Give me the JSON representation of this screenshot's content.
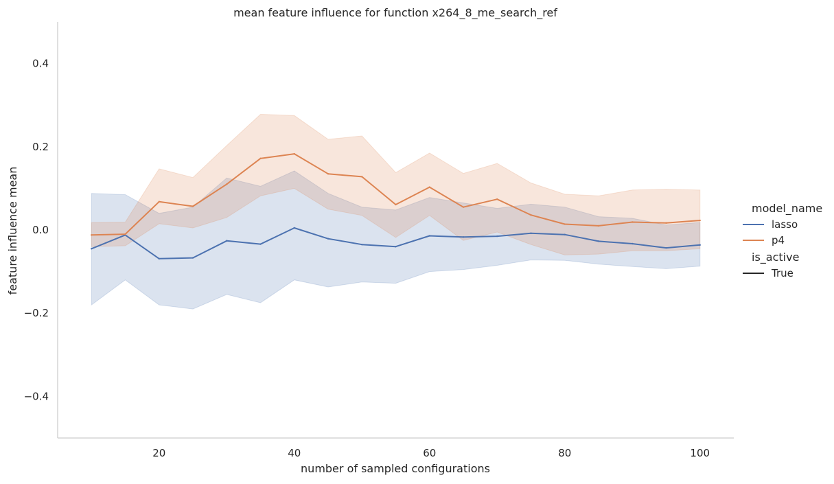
{
  "chart_data": {
    "type": "line",
    "title": "mean feature influence for function x264_8_me_search_ref",
    "xlabel": "number of sampled configurations",
    "ylabel": "feature influence mean",
    "xlim": [
      5,
      105
    ],
    "ylim": [
      -0.5,
      0.5
    ],
    "xticks": [
      20,
      40,
      60,
      80,
      100
    ],
    "yticks": [
      -0.4,
      -0.2,
      0.0,
      0.2,
      0.4
    ],
    "ytick_labels": [
      "−0.4",
      "−0.2",
      "0.0",
      "0.2",
      "0.4"
    ],
    "grid": false,
    "legend_position": "right",
    "x": [
      10,
      15,
      20,
      25,
      30,
      35,
      40,
      45,
      50,
      55,
      60,
      65,
      70,
      75,
      80,
      85,
      90,
      95,
      100
    ],
    "series": [
      {
        "name": "lasso",
        "color": "#4c72b0",
        "values": [
          -0.045,
          -0.012,
          -0.069,
          -0.067,
          -0.026,
          -0.034,
          0.005,
          -0.021,
          -0.035,
          -0.04,
          -0.014,
          -0.017,
          -0.015,
          -0.008,
          -0.011,
          -0.027,
          -0.033,
          -0.043,
          -0.036
        ],
        "ci_lower": [
          -0.18,
          -0.12,
          -0.18,
          -0.19,
          -0.155,
          -0.175,
          -0.12,
          -0.137,
          -0.125,
          -0.128,
          -0.1,
          -0.095,
          -0.085,
          -0.072,
          -0.073,
          -0.082,
          -0.088,
          -0.093,
          -0.087
        ],
        "ci_upper": [
          0.088,
          0.085,
          0.04,
          0.055,
          0.125,
          0.105,
          0.142,
          0.088,
          0.055,
          0.048,
          0.078,
          0.065,
          0.052,
          0.062,
          0.055,
          0.032,
          0.028,
          0.012,
          0.018
        ]
      },
      {
        "name": "p4",
        "color": "#dd8452",
        "values": [
          -0.012,
          -0.01,
          0.068,
          0.057,
          0.11,
          0.172,
          0.183,
          0.135,
          0.128,
          0.061,
          0.103,
          0.055,
          0.074,
          0.036,
          0.014,
          0.01,
          0.019,
          0.017,
          0.023
        ],
        "ci_lower": [
          -0.04,
          -0.038,
          0.015,
          0.005,
          0.03,
          0.082,
          0.1,
          0.05,
          0.035,
          -0.018,
          0.035,
          -0.025,
          -0.005,
          -0.035,
          -0.06,
          -0.058,
          -0.05,
          -0.05,
          -0.045
        ],
        "ci_upper": [
          0.018,
          0.019,
          0.147,
          0.126,
          0.203,
          0.278,
          0.275,
          0.218,
          0.226,
          0.138,
          0.185,
          0.136,
          0.16,
          0.113,
          0.086,
          0.082,
          0.096,
          0.098,
          0.096
        ]
      }
    ],
    "legend": {
      "hue_title": "model_name",
      "style_title": "is_active",
      "style_entries": [
        {
          "label": "True",
          "color": "#262626"
        }
      ]
    }
  }
}
